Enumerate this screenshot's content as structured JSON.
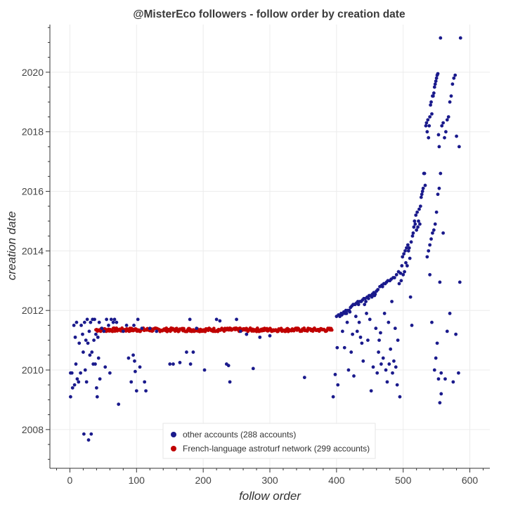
{
  "chart_data": {
    "type": "scatter",
    "title": "@MisterEco followers - follow order by creation date",
    "xlabel": "follow order",
    "ylabel": "creation date",
    "xlim": [
      -30,
      630
    ],
    "ylim": [
      2006.7,
      2021.6
    ],
    "xticks": [
      0,
      100,
      200,
      300,
      400,
      500,
      600
    ],
    "yticks": [
      2008,
      2010,
      2012,
      2014,
      2016,
      2018,
      2020
    ],
    "grid": true,
    "legend_position": "bottom-center",
    "series": [
      {
        "name": "other accounts (288 accounts)",
        "color": "#1a1a8c",
        "points": [
          [
            1,
            2009.1
          ],
          [
            1,
            2009.9
          ],
          [
            3,
            2009.9
          ],
          [
            4,
            2009.4
          ],
          [
            6,
            2011.5
          ],
          [
            7,
            2009.5
          ],
          [
            8,
            2011.1
          ],
          [
            9,
            2010.2
          ],
          [
            10,
            2011.6
          ],
          [
            11,
            2009.7
          ],
          [
            13,
            2009.6
          ],
          [
            14,
            2010.9
          ],
          [
            16,
            2009.9
          ],
          [
            17,
            2011.5
          ],
          [
            19,
            2011.2
          ],
          [
            20,
            2010.6
          ],
          [
            21,
            2007.85
          ],
          [
            22,
            2011.6
          ],
          [
            23,
            2010.0
          ],
          [
            24,
            2011.0
          ],
          [
            25,
            2009.6
          ],
          [
            26,
            2011.7
          ],
          [
            27,
            2010.9
          ],
          [
            28,
            2007.65
          ],
          [
            29,
            2011.3
          ],
          [
            30,
            2010.5
          ],
          [
            31,
            2011.6
          ],
          [
            32,
            2007.85
          ],
          [
            33,
            2010.6
          ],
          [
            34,
            2011.7
          ],
          [
            35,
            2010.2
          ],
          [
            36,
            2011.0
          ],
          [
            37,
            2011.7
          ],
          [
            38,
            2010.2
          ],
          [
            39,
            2011.2
          ],
          [
            40,
            2009.4
          ],
          [
            41,
            2009.1
          ],
          [
            42,
            2011.1
          ],
          [
            43,
            2010.4
          ],
          [
            44,
            2011.6
          ],
          [
            45,
            2009.7
          ],
          [
            48,
            2011.4
          ],
          [
            51,
            2011.3
          ],
          [
            53,
            2010.1
          ],
          [
            55,
            2011.7
          ],
          [
            58,
            2011.5
          ],
          [
            60,
            2009.9
          ],
          [
            62,
            2011.7
          ],
          [
            65,
            2011.6
          ],
          [
            67,
            2011.7
          ],
          [
            70,
            2011.6
          ],
          [
            73,
            2008.85
          ],
          [
            80,
            2011.3
          ],
          [
            85,
            2011.5
          ],
          [
            88,
            2010.4
          ],
          [
            92,
            2009.6
          ],
          [
            95,
            2010.5
          ],
          [
            96,
            2011.5
          ],
          [
            97,
            2010.3
          ],
          [
            98,
            2009.95
          ],
          [
            100,
            2009.3
          ],
          [
            102,
            2011.7
          ],
          [
            105,
            2010.1
          ],
          [
            108,
            2011.4
          ],
          [
            112,
            2009.6
          ],
          [
            114,
            2009.3
          ],
          [
            120,
            2011.4
          ],
          [
            130,
            2011.3
          ],
          [
            150,
            2010.2
          ],
          [
            155,
            2010.2
          ],
          [
            165,
            2010.25
          ],
          [
            175,
            2010.6
          ],
          [
            180,
            2011.7
          ],
          [
            181,
            2010.2
          ],
          [
            185,
            2010.6
          ],
          [
            190,
            2011.4
          ],
          [
            202,
            2010.0
          ],
          [
            220,
            2011.7
          ],
          [
            225,
            2011.65
          ],
          [
            235,
            2010.2
          ],
          [
            238,
            2010.15
          ],
          [
            240,
            2009.6
          ],
          [
            250,
            2011.7
          ],
          [
            256,
            2011.3
          ],
          [
            265,
            2011.2
          ],
          [
            275,
            2010.05
          ],
          [
            285,
            2011.1
          ],
          [
            300,
            2011.15
          ],
          [
            352,
            2009.75
          ],
          [
            395,
            2009.1
          ],
          [
            398,
            2009.85
          ],
          [
            400,
            2011.8
          ],
          [
            401,
            2010.75
          ],
          [
            402,
            2009.5
          ],
          [
            403,
            2011.85
          ],
          [
            405,
            2011.8
          ],
          [
            407,
            2011.9
          ],
          [
            408,
            2011.85
          ],
          [
            409,
            2011.3
          ],
          [
            410,
            2011.9
          ],
          [
            411,
            2011.95
          ],
          [
            412,
            2010.75
          ],
          [
            413,
            2011.9
          ],
          [
            414,
            2012.0
          ],
          [
            415,
            2011.9
          ],
          [
            416,
            2011.6
          ],
          [
            417,
            2012.0
          ],
          [
            418,
            2010.0
          ],
          [
            419,
            2012.0
          ],
          [
            420,
            2011.95
          ],
          [
            421,
            2012.1
          ],
          [
            422,
            2010.6
          ],
          [
            423,
            2012.15
          ],
          [
            424,
            2011.2
          ],
          [
            425,
            2012.2
          ],
          [
            426,
            2009.8
          ],
          [
            427,
            2012.2
          ],
          [
            428,
            2012.2
          ],
          [
            429,
            2011.8
          ],
          [
            430,
            2012.25
          ],
          [
            431,
            2011.3
          ],
          [
            432,
            2012.3
          ],
          [
            433,
            2012.2
          ],
          [
            434,
            2011.6
          ],
          [
            435,
            2012.3
          ],
          [
            436,
            2011.1
          ],
          [
            437,
            2012.3
          ],
          [
            438,
            2010.9
          ],
          [
            439,
            2012.35
          ],
          [
            440,
            2010.3
          ],
          [
            441,
            2012.4
          ],
          [
            442,
            2012.2
          ],
          [
            443,
            2012.4
          ],
          [
            444,
            2012.3
          ],
          [
            445,
            2011.9
          ],
          [
            446,
            2012.45
          ],
          [
            447,
            2011.0
          ],
          [
            448,
            2012.4
          ],
          [
            449,
            2012.5
          ],
          [
            450,
            2011.7
          ],
          [
            451,
            2012.5
          ],
          [
            452,
            2009.3
          ],
          [
            453,
            2012.45
          ],
          [
            454,
            2012.55
          ],
          [
            455,
            2010.1
          ],
          [
            456,
            2012.6
          ],
          [
            457,
            2012.5
          ],
          [
            458,
            2012.55
          ],
          [
            459,
            2011.4
          ],
          [
            460,
            2012.65
          ],
          [
            461,
            2009.9
          ],
          [
            462,
            2012.7
          ],
          [
            463,
            2010.6
          ],
          [
            464,
            2011.0
          ],
          [
            465,
            2012.8
          ],
          [
            466,
            2011.25
          ],
          [
            467,
            2010.2
          ],
          [
            468,
            2012.85
          ],
          [
            469,
            2012.8
          ],
          [
            470,
            2010.4
          ],
          [
            471,
            2012.9
          ],
          [
            472,
            2011.9
          ],
          [
            473,
            2012.9
          ],
          [
            474,
            2010.0
          ],
          [
            475,
            2012.95
          ],
          [
            476,
            2009.6
          ],
          [
            477,
            2013.0
          ],
          [
            478,
            2011.6
          ],
          [
            479,
            2010.2
          ],
          [
            480,
            2013.0
          ],
          [
            481,
            2010.7
          ],
          [
            482,
            2013.05
          ],
          [
            483,
            2012.3
          ],
          [
            484,
            2009.9
          ],
          [
            485,
            2013.1
          ],
          [
            486,
            2010.3
          ],
          [
            487,
            2013.1
          ],
          [
            488,
            2011.4
          ],
          [
            489,
            2010.1
          ],
          [
            490,
            2013.2
          ],
          [
            491,
            2009.5
          ],
          [
            492,
            2011.0
          ],
          [
            493,
            2013.3
          ],
          [
            494,
            2012.9
          ],
          [
            495,
            2009.1
          ],
          [
            496,
            2013.25
          ],
          [
            497,
            2013.0
          ],
          [
            498,
            2013.5
          ],
          [
            499,
            2013.8
          ],
          [
            500,
            2013.2
          ],
          [
            501,
            2013.9
          ],
          [
            502,
            2013.3
          ],
          [
            503,
            2014.0
          ],
          [
            504,
            2013.6
          ],
          [
            505,
            2014.1
          ],
          [
            506,
            2013.5
          ],
          [
            507,
            2014.2
          ],
          [
            508,
            2014.0
          ],
          [
            509,
            2014.1
          ],
          [
            510,
            2013.75
          ],
          [
            511,
            2012.45
          ],
          [
            512,
            2014.3
          ],
          [
            513,
            2011.5
          ],
          [
            514,
            2014.5
          ],
          [
            515,
            2014.6
          ],
          [
            516,
            2014.8
          ],
          [
            517,
            2015.0
          ],
          [
            518,
            2014.9
          ],
          [
            519,
            2015.2
          ],
          [
            520,
            2014.7
          ],
          [
            521,
            2015.3
          ],
          [
            522,
            2014.8
          ],
          [
            523,
            2015.0
          ],
          [
            524,
            2015.4
          ],
          [
            525,
            2014.9
          ],
          [
            526,
            2015.5
          ],
          [
            527,
            2015.8
          ],
          [
            528,
            2015.9
          ],
          [
            529,
            2016.0
          ],
          [
            530,
            2016.1
          ],
          [
            531,
            2016.6
          ],
          [
            532,
            2016.6
          ],
          [
            533,
            2016.2
          ],
          [
            534,
            2018.2
          ],
          [
            535,
            2018.3
          ],
          [
            536,
            2018.0
          ],
          [
            537,
            2018.4
          ],
          [
            538,
            2017.8
          ],
          [
            539,
            2018.2
          ],
          [
            540,
            2018.5
          ],
          [
            541,
            2018.9
          ],
          [
            542,
            2019.0
          ],
          [
            543,
            2018.6
          ],
          [
            544,
            2019.2
          ],
          [
            545,
            2019.2
          ],
          [
            546,
            2019.3
          ],
          [
            547,
            2019.5
          ],
          [
            548,
            2019.6
          ],
          [
            549,
            2019.7
          ],
          [
            550,
            2019.8
          ],
          [
            551,
            2019.9
          ],
          [
            552,
            2019.95
          ],
          [
            553,
            2017.9
          ],
          [
            554,
            2017.5
          ],
          [
            555,
            2012.95
          ],
          [
            556,
            2021.15
          ],
          [
            557,
            2009.9
          ],
          [
            540,
            2013.2
          ],
          [
            543,
            2011.6
          ],
          [
            547,
            2010.0
          ],
          [
            549,
            2010.4
          ],
          [
            551,
            2010.9
          ],
          [
            553,
            2009.7
          ],
          [
            555,
            2008.9
          ],
          [
            557,
            2009.2
          ],
          [
            560,
            2014.6
          ],
          [
            563,
            2009.7
          ],
          [
            566,
            2011.3
          ],
          [
            570,
            2011.9
          ],
          [
            575,
            2009.6
          ],
          [
            579,
            2011.2
          ],
          [
            583,
            2009.9
          ],
          [
            584,
            2017.5
          ],
          [
            585,
            2012.95
          ],
          [
            586,
            2021.15
          ],
          [
            580,
            2017.85
          ],
          [
            578,
            2019.9
          ],
          [
            576,
            2019.8
          ],
          [
            574,
            2019.6
          ],
          [
            572,
            2019.2
          ],
          [
            570,
            2019.0
          ],
          [
            568,
            2018.5
          ],
          [
            566,
            2018.4
          ],
          [
            564,
            2018.0
          ],
          [
            562,
            2017.8
          ],
          [
            560,
            2018.3
          ],
          [
            558,
            2018.2
          ],
          [
            556,
            2016.6
          ],
          [
            554,
            2016.1
          ],
          [
            552,
            2015.9
          ],
          [
            550,
            2015.3
          ],
          [
            548,
            2014.9
          ],
          [
            546,
            2014.7
          ],
          [
            544,
            2014.6
          ],
          [
            542,
            2014.4
          ],
          [
            540,
            2014.2
          ],
          [
            538,
            2014.0
          ],
          [
            536,
            2013.8
          ]
        ]
      },
      {
        "name": "French-language astroturf network (299 accounts)",
        "color": "#c00000",
        "band": {
          "x_start": 39,
          "x_end": 393,
          "y_center": 2011.35,
          "y_spread": 0.06,
          "count": 299
        }
      }
    ]
  }
}
